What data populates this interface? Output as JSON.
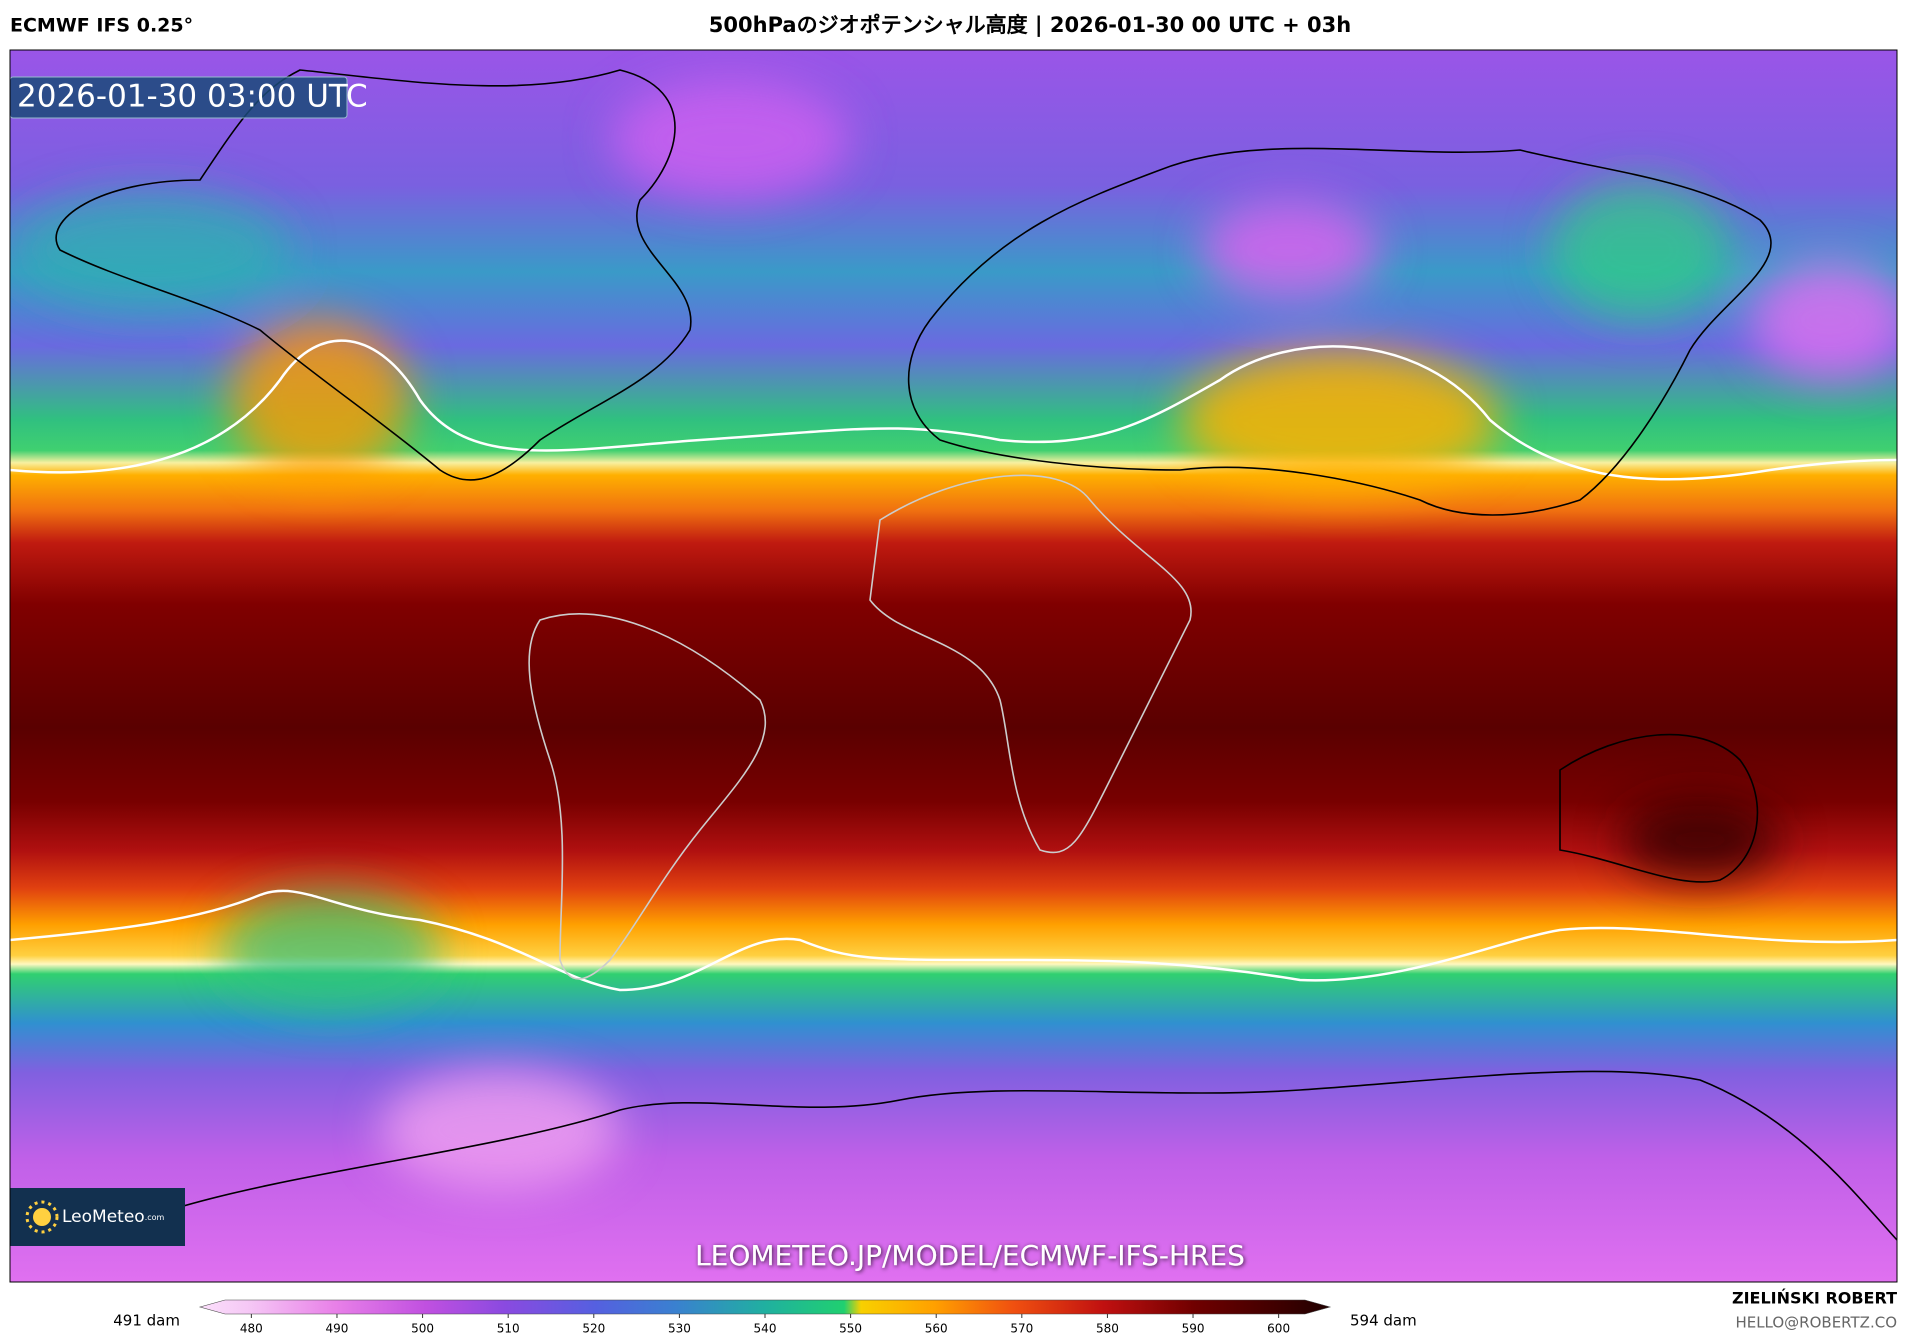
{
  "header": {
    "model": "ECMWF IFS 0.25°",
    "title": "500hPaのジオポテンシャル高度 | 2026-01-30 00 UTC + 03h"
  },
  "map": {
    "timestamp": "2026-01-30 03:00 UTC",
    "logo": {
      "name": "LeoMeteo",
      "suffix": ".com"
    },
    "url": "LEOMETEO.JP/MODEL/ECMWF-IFS-HRES"
  },
  "colorbar": {
    "min_label": "491 dam",
    "max_label": "594 dam",
    "range": [
      474,
      606
    ],
    "ticks": [
      480,
      490,
      500,
      510,
      520,
      530,
      540,
      550,
      560,
      570,
      580,
      590,
      600
    ]
  },
  "credits": {
    "author": "ZIELIŃSKI ROBERT",
    "email": "HELLO@ROBERTZ.CO"
  }
}
